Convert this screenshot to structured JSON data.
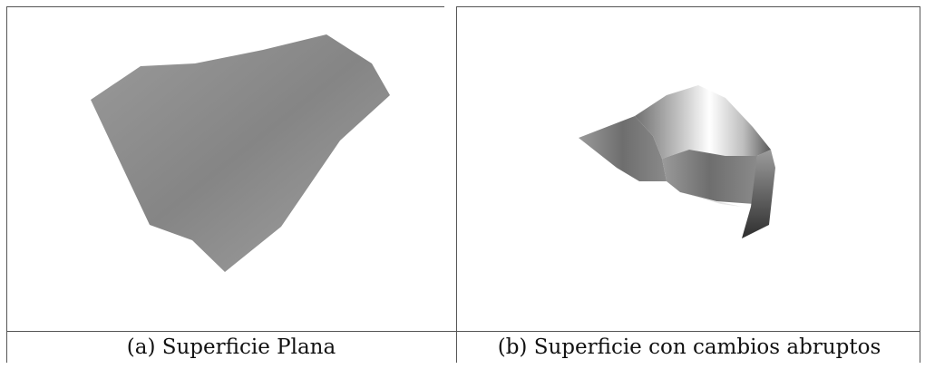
{
  "figure": {
    "captions": [
      "(a) Superficie Plana",
      "(b) Superficie con cambios abruptos"
    ]
  }
}
